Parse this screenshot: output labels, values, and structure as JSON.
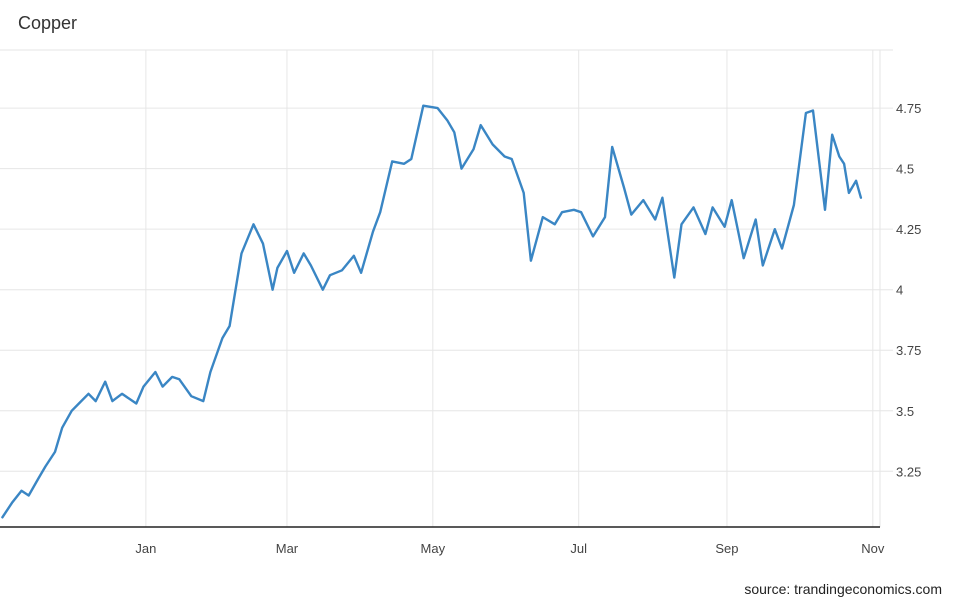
{
  "chart_data": {
    "type": "line",
    "title": "Copper",
    "xlabel": "",
    "ylabel": "",
    "ylim": [
      3.02,
      4.99
    ],
    "yticks": [
      3.25,
      3.5,
      3.75,
      4,
      4.25,
      4.5,
      4.75
    ],
    "ytick_labels": [
      "3.25",
      "3.5",
      "3.75",
      "4",
      "4.25",
      "4.5",
      "4.75"
    ],
    "xlim": [
      "2020-11-01",
      "2021-11-04"
    ],
    "xticks": [
      "2021-01-01",
      "2021-03-01",
      "2021-05-01",
      "2021-07-01",
      "2021-09-01",
      "2021-11-01"
    ],
    "xtick_labels": [
      "Jan",
      "Mar",
      "May",
      "Jul",
      "Sep",
      "Nov"
    ],
    "grid": true,
    "y_axis_position": "right",
    "series": [
      {
        "color": "#3a86c4",
        "x": [
          "2020-11-02",
          "2020-11-06",
          "2020-11-10",
          "2020-11-13",
          "2020-11-17",
          "2020-11-20",
          "2020-11-24",
          "2020-11-27",
          "2020-12-01",
          "2020-12-04",
          "2020-12-08",
          "2020-12-11",
          "2020-12-15",
          "2020-12-18",
          "2020-12-22",
          "2020-12-28",
          "2020-12-31",
          "2021-01-05",
          "2021-01-08",
          "2021-01-12",
          "2021-01-15",
          "2021-01-20",
          "2021-01-25",
          "2021-01-28",
          "2021-02-02",
          "2021-02-05",
          "2021-02-10",
          "2021-02-15",
          "2021-02-19",
          "2021-02-23",
          "2021-02-25",
          "2021-03-01",
          "2021-03-04",
          "2021-03-08",
          "2021-03-11",
          "2021-03-16",
          "2021-03-19",
          "2021-03-24",
          "2021-03-29",
          "2021-04-01",
          "2021-04-06",
          "2021-04-09",
          "2021-04-14",
          "2021-04-19",
          "2021-04-22",
          "2021-04-27",
          "2021-05-03",
          "2021-05-07",
          "2021-05-10",
          "2021-05-13",
          "2021-05-18",
          "2021-05-21",
          "2021-05-26",
          "2021-05-31",
          "2021-06-03",
          "2021-06-08",
          "2021-06-11",
          "2021-06-16",
          "2021-06-21",
          "2021-06-24",
          "2021-06-29",
          "2021-07-02",
          "2021-07-07",
          "2021-07-12",
          "2021-07-15",
          "2021-07-20",
          "2021-07-23",
          "2021-07-28",
          "2021-08-02",
          "2021-08-05",
          "2021-08-10",
          "2021-08-13",
          "2021-08-18",
          "2021-08-23",
          "2021-08-26",
          "2021-08-31",
          "2021-09-03",
          "2021-09-08",
          "2021-09-13",
          "2021-09-16",
          "2021-09-21",
          "2021-09-24",
          "2021-09-29",
          "2021-10-04",
          "2021-10-07",
          "2021-10-12",
          "2021-10-15",
          "2021-10-18",
          "2021-10-20",
          "2021-10-22",
          "2021-10-25",
          "2021-10-27"
        ],
        "values": [
          3.06,
          3.12,
          3.17,
          3.15,
          3.22,
          3.27,
          3.33,
          3.43,
          3.5,
          3.53,
          3.57,
          3.54,
          3.62,
          3.54,
          3.57,
          3.53,
          3.6,
          3.66,
          3.6,
          3.64,
          3.63,
          3.56,
          3.54,
          3.66,
          3.8,
          3.85,
          4.15,
          4.27,
          4.19,
          4.0,
          4.09,
          4.16,
          4.07,
          4.15,
          4.1,
          4.0,
          4.06,
          4.08,
          4.14,
          4.07,
          4.24,
          4.32,
          4.53,
          4.52,
          4.54,
          4.76,
          4.75,
          4.7,
          4.65,
          4.5,
          4.58,
          4.68,
          4.6,
          4.55,
          4.54,
          4.4,
          4.12,
          4.3,
          4.27,
          4.32,
          4.33,
          4.32,
          4.22,
          4.3,
          4.59,
          4.42,
          4.31,
          4.37,
          4.29,
          4.38,
          4.05,
          4.27,
          4.34,
          4.23,
          4.34,
          4.26,
          4.37,
          4.13,
          4.29,
          4.1,
          4.25,
          4.17,
          4.35,
          4.73,
          4.74,
          4.33,
          4.64,
          4.55,
          4.52,
          4.4,
          4.45,
          4.38
        ]
      }
    ]
  },
  "source_text": "source: trandingeconomics.com"
}
